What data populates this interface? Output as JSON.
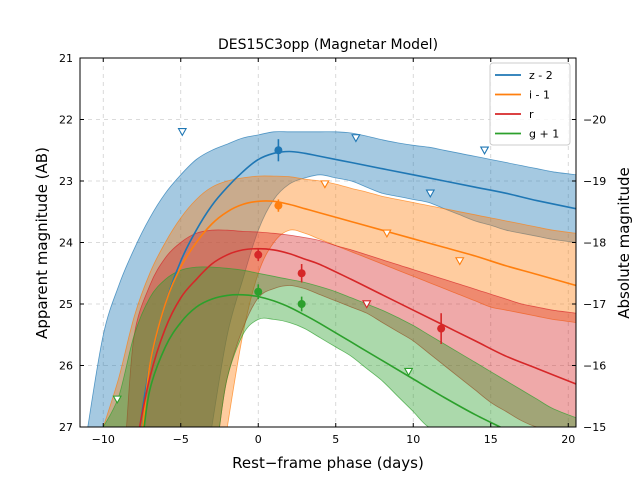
{
  "chart_data": {
    "type": "line",
    "title": "DES15C3opp (Magnetar Model)",
    "xlabel": "Rest−frame phase (days)",
    "ylabel": "Apparent magnitude (AB)",
    "ylabel_right": "Absolute magnitude",
    "xlim": [
      -11.5,
      20.5
    ],
    "ylim": [
      27,
      21
    ],
    "ylim_right": [
      -15,
      -21
    ],
    "x_ticks": [
      -10,
      -5,
      0,
      5,
      10,
      15,
      20
    ],
    "y_ticks": [
      21,
      22,
      23,
      24,
      25,
      26,
      27
    ],
    "y_ticks_right": [
      -20,
      -19,
      -18,
      -17,
      -16,
      -15
    ],
    "grid": true,
    "legend_position": "top-right",
    "series": [
      {
        "name": "z - 2",
        "color": "#1f77b4",
        "model": {
          "x": [
            -8,
            -7,
            -6,
            -5,
            -4,
            -3,
            -2,
            -1,
            0,
            1,
            2,
            3,
            4,
            6,
            8,
            10,
            12,
            14,
            16,
            18,
            20.5
          ],
          "y": [
            27.6,
            26.0,
            25.0,
            24.3,
            23.8,
            23.4,
            23.1,
            22.85,
            22.65,
            22.55,
            22.52,
            22.55,
            22.6,
            22.7,
            22.8,
            22.9,
            23.0,
            23.1,
            23.2,
            23.32,
            23.45
          ]
        },
        "band_upper": {
          "x": [
            -11,
            -10,
            -9,
            -8,
            -7,
            -6,
            -5,
            -4,
            -3,
            -2,
            -1,
            0,
            1,
            2,
            3,
            4,
            5,
            6,
            7,
            8,
            9,
            10,
            11,
            12,
            13,
            14,
            15,
            16,
            17,
            18,
            19,
            20.5
          ],
          "y": [
            27,
            25.5,
            24.7,
            24.1,
            23.6,
            23.2,
            22.9,
            22.65,
            22.5,
            22.4,
            22.3,
            22.25,
            22.2,
            22.2,
            22.2,
            22.2,
            22.2,
            22.22,
            22.27,
            22.33,
            22.38,
            22.42,
            22.45,
            22.5,
            22.55,
            22.6,
            22.65,
            22.7,
            22.75,
            22.8,
            22.85,
            22.9
          ]
        },
        "band_lower": {
          "x": [
            -3,
            -2,
            -1,
            0,
            1,
            2,
            3,
            4,
            5,
            6,
            7,
            8,
            9,
            10,
            11,
            12,
            13,
            14,
            15,
            16,
            17,
            18,
            19,
            20.5
          ],
          "y": [
            27,
            25.5,
            24.6,
            23.8,
            23.3,
            23.05,
            22.95,
            22.9,
            22.95,
            23.0,
            23.1,
            23.2,
            23.25,
            23.3,
            23.35,
            23.45,
            23.55,
            23.65,
            23.72,
            23.8,
            23.85,
            23.9,
            23.95,
            24.0
          ]
        },
        "points": [
          {
            "x": 1.3,
            "y": 22.5,
            "err": 0.18
          }
        ],
        "upper_limits": [
          {
            "x": -4.9,
            "y": 22.2
          },
          {
            "x": 6.3,
            "y": 22.3
          },
          {
            "x": 11.1,
            "y": 23.2
          },
          {
            "x": 14.6,
            "y": 22.5
          }
        ]
      },
      {
        "name": "i - 1",
        "color": "#ff7f0e",
        "model": {
          "x": [
            -7.5,
            -7,
            -6,
            -5,
            -4,
            -3,
            -2,
            -1,
            0,
            1,
            2,
            3,
            4,
            6,
            8,
            10,
            12,
            14,
            16,
            18,
            20.5
          ],
          "y": [
            27.2,
            26.0,
            25.0,
            24.4,
            24.0,
            23.7,
            23.5,
            23.38,
            23.33,
            23.33,
            23.38,
            23.45,
            23.52,
            23.66,
            23.8,
            23.94,
            24.08,
            24.22,
            24.38,
            24.52,
            24.7
          ]
        },
        "band_upper": {
          "x": [
            -10,
            -9,
            -8,
            -7,
            -6,
            -5,
            -4,
            -3,
            -2,
            -1,
            0,
            1,
            2,
            3,
            4,
            5,
            6,
            7,
            8,
            9,
            10,
            11,
            12,
            13,
            14,
            15,
            16,
            17,
            18,
            19,
            20.5
          ],
          "y": [
            27,
            26.2,
            25.2,
            24.5,
            24.0,
            23.6,
            23.3,
            23.1,
            23.0,
            22.95,
            22.92,
            22.92,
            22.93,
            22.97,
            23.0,
            23.05,
            23.12,
            23.18,
            23.25,
            23.3,
            23.35,
            23.4,
            23.45,
            23.5,
            23.55,
            23.6,
            23.65,
            23.7,
            23.75,
            23.8,
            23.85
          ]
        },
        "band_lower": {
          "x": [
            -2,
            -1,
            0,
            1,
            2,
            3,
            4,
            5,
            6,
            7,
            8,
            9,
            10,
            11,
            12,
            13,
            14,
            15,
            16,
            17,
            18,
            19,
            20.5
          ],
          "y": [
            27,
            25.5,
            24.5,
            24.0,
            23.8,
            23.85,
            23.95,
            24.05,
            24.15,
            24.25,
            24.35,
            24.45,
            24.55,
            24.65,
            24.75,
            24.85,
            24.95,
            25.05,
            25.1,
            25.15,
            25.2,
            25.25,
            25.3
          ]
        },
        "points": [
          {
            "x": 1.3,
            "y": 23.4,
            "err": 0.1
          }
        ],
        "upper_limits": [
          {
            "x": 4.3,
            "y": 23.05
          },
          {
            "x": 8.3,
            "y": 23.85
          },
          {
            "x": 13.0,
            "y": 24.3
          }
        ]
      },
      {
        "name": "r",
        "color": "#d62728",
        "model": {
          "x": [
            -7.8,
            -7,
            -6,
            -5,
            -4,
            -3,
            -2,
            -1,
            0,
            1,
            2,
            3,
            4,
            6,
            8,
            10,
            12,
            14,
            16,
            18,
            20.5
          ],
          "y": [
            27.2,
            26.2,
            25.4,
            24.9,
            24.6,
            24.35,
            24.2,
            24.12,
            24.1,
            24.12,
            24.18,
            24.27,
            24.36,
            24.6,
            24.85,
            25.1,
            25.35,
            25.6,
            25.85,
            26.05,
            26.3
          ]
        },
        "band_upper": {
          "x": [
            -8.5,
            -8,
            -7,
            -6,
            -5,
            -4,
            -3,
            -2,
            -1,
            0,
            1,
            2,
            3,
            4,
            5,
            6,
            7,
            8,
            9,
            10,
            11,
            12,
            13,
            14,
            15,
            16,
            17,
            18,
            19,
            20.5
          ],
          "y": [
            27,
            25.5,
            24.7,
            24.25,
            24.0,
            23.85,
            23.8,
            23.8,
            23.82,
            23.83,
            23.85,
            23.88,
            23.92,
            23.97,
            24.05,
            24.12,
            24.2,
            24.28,
            24.36,
            24.44,
            24.52,
            24.6,
            24.68,
            24.76,
            24.84,
            24.92,
            25.0,
            25.05,
            25.1,
            25.15
          ]
        },
        "band_lower": {
          "x": [
            -2.5,
            -2,
            -1,
            0,
            1,
            2,
            3,
            4,
            5,
            6,
            7,
            8,
            9,
            10,
            11,
            12,
            13,
            14,
            15,
            16,
            17,
            18,
            19,
            20.5
          ],
          "y": [
            27,
            26.2,
            25.4,
            24.9,
            24.75,
            24.7,
            24.75,
            24.85,
            24.95,
            25.05,
            25.15,
            25.3,
            25.45,
            25.6,
            25.8,
            26.0,
            26.2,
            26.4,
            26.6,
            26.75,
            26.9,
            27.0,
            27.0,
            27.0
          ]
        },
        "points": [
          {
            "x": 0.0,
            "y": 24.2,
            "err": 0.1
          },
          {
            "x": 2.8,
            "y": 24.5,
            "err": 0.15
          },
          {
            "x": 11.8,
            "y": 25.4,
            "err": 0.25
          }
        ],
        "upper_limits": [
          {
            "x": 7.0,
            "y": 25.0
          }
        ]
      },
      {
        "name": "g + 1",
        "color": "#2ca02c",
        "model": {
          "x": [
            -7.5,
            -7,
            -6,
            -5,
            -4,
            -3,
            -2,
            -1,
            0,
            1,
            2,
            3,
            4,
            6,
            8,
            10,
            12,
            14,
            16,
            17
          ],
          "y": [
            27.3,
            26.4,
            25.7,
            25.3,
            25.05,
            24.92,
            24.86,
            24.85,
            24.88,
            24.95,
            25.05,
            25.18,
            25.32,
            25.62,
            25.92,
            26.22,
            26.52,
            26.8,
            27.05,
            27.2
          ]
        },
        "band_upper": {
          "x": [
            -10,
            -9,
            -8,
            -7,
            -6,
            -5,
            -4,
            -3,
            -2,
            -1,
            0,
            1,
            2,
            3,
            4,
            5,
            6,
            7,
            8,
            9,
            10,
            11,
            12,
            13,
            14,
            15,
            16,
            17,
            18,
            19,
            20.5
          ],
          "y": [
            27,
            26.5,
            25.5,
            24.9,
            24.6,
            24.45,
            24.4,
            24.4,
            24.42,
            24.45,
            24.5,
            24.55,
            24.6,
            24.65,
            24.72,
            24.8,
            24.9,
            25.0,
            25.1,
            25.22,
            25.35,
            25.5,
            25.65,
            25.8,
            25.95,
            26.1,
            26.25,
            26.4,
            26.55,
            26.7,
            26.85
          ]
        },
        "band_lower": {
          "x": [
            -2.5,
            -2,
            -1,
            0,
            1,
            2,
            3,
            4,
            5,
            6,
            7,
            8,
            9,
            10,
            11,
            12
          ],
          "y": [
            27,
            26.2,
            25.5,
            25.25,
            25.25,
            25.3,
            25.4,
            25.55,
            25.7,
            25.85,
            26.05,
            26.25,
            26.5,
            26.75,
            27.0,
            27.0
          ]
        },
        "points": [
          {
            "x": 0.0,
            "y": 24.8,
            "err": 0.12
          },
          {
            "x": 2.8,
            "y": 25.0,
            "err": 0.12
          }
        ],
        "upper_limits": [
          {
            "x": -9.1,
            "y": 26.55
          },
          {
            "x": 9.7,
            "y": 26.1
          }
        ]
      }
    ]
  }
}
